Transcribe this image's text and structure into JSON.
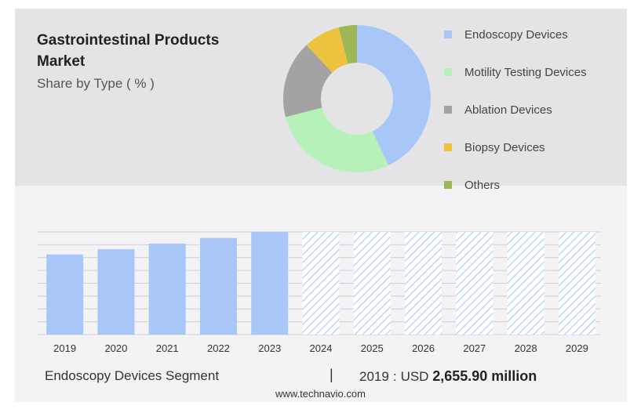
{
  "header": {
    "title": "Gastrointestinal Products Market",
    "subtitle": "Share by Type ( % )"
  },
  "colors": {
    "endoscopy": "#a9c6f9",
    "motility": "#b6f1b9",
    "ablation": "#a3a3a3",
    "biopsy": "#edc23f",
    "others": "#9db656"
  },
  "chart_data": [
    {
      "type": "pie",
      "title": "Share by Type ( % )",
      "series": [
        {
          "name": "Endoscopy Devices",
          "value": 43,
          "color": "#a9c6f9"
        },
        {
          "name": "Motility Testing Devices",
          "value": 28,
          "color": "#b6f1b9"
        },
        {
          "name": "Ablation Devices",
          "value": 17,
          "color": "#a3a3a3"
        },
        {
          "name": "Biopsy Devices",
          "value": 8,
          "color": "#edc23f"
        },
        {
          "name": "Others",
          "value": 4,
          "color": "#9db656"
        }
      ],
      "legend_position": "right"
    },
    {
      "type": "bar",
      "categories": [
        "2019",
        "2020",
        "2021",
        "2022",
        "2023",
        "2024",
        "2025",
        "2026",
        "2027",
        "2028",
        "2029"
      ],
      "values": [
        2655.9,
        2830,
        3010,
        3200,
        3400,
        3400,
        3400,
        3400,
        3400,
        3400,
        3400
      ],
      "forecast_from": "2024",
      "ylim": [
        0,
        3400
      ],
      "grid": true,
      "bar_color": "#a9c6f9"
    }
  ],
  "footer": {
    "segment": "Endoscopy Devices Segment",
    "separator": "|",
    "year": "2019",
    "colon": ":",
    "currency": "USD",
    "value": "2,655.90 million",
    "source": "www.technavio.com"
  }
}
